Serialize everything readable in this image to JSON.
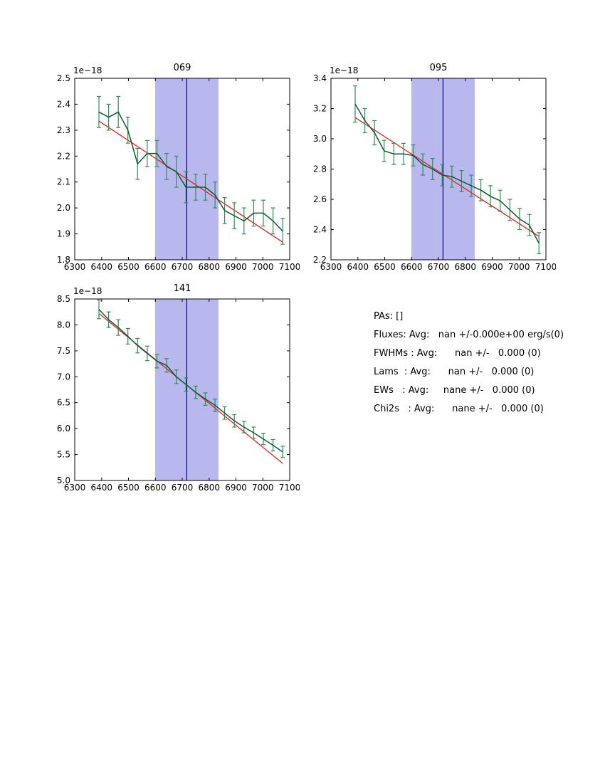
{
  "figure": {
    "bg": "#ffffff",
    "band_color": "#b8b8ef",
    "vline_color": "#00008b",
    "fit_color": "#ee1c1c",
    "line_color": "#0a5c30",
    "err_color": "#2e9150",
    "axis_color": "#000000"
  },
  "chart_data": [
    {
      "type": "line",
      "title": "069",
      "offset": "1e−18",
      "xlim": [
        6300,
        7100
      ],
      "ylim": [
        1.8,
        2.5
      ],
      "xticks": [
        6300,
        6400,
        6500,
        6600,
        6700,
        6800,
        6900,
        7000,
        7100
      ],
      "xtick_labels": [
        "6300",
        "6400",
        "6500",
        "6600",
        "6700",
        "6800",
        "6900",
        "7000",
        "7100"
      ],
      "yticks": [
        1.8,
        1.9,
        2.0,
        2.1,
        2.2,
        2.3,
        2.4,
        2.5
      ],
      "ytick_labels": [
        "1.8",
        "1.9",
        "2.0",
        "2.1",
        "2.2",
        "2.3",
        "2.4",
        "2.5"
      ],
      "band": [
        6599,
        6835
      ],
      "vline": 6717,
      "x": [
        6390,
        6426,
        6462,
        6498,
        6534,
        6570,
        6606,
        6642,
        6678,
        6714,
        6750,
        6786,
        6822,
        6858,
        6894,
        6930,
        6966,
        7002,
        7038,
        7074
      ],
      "y": [
        2.37,
        2.35,
        2.37,
        2.3,
        2.17,
        2.21,
        2.21,
        2.16,
        2.14,
        2.08,
        2.08,
        2.08,
        2.05,
        1.99,
        1.97,
        1.95,
        1.98,
        1.98,
        1.95,
        1.91
      ],
      "yerr": [
        0.06,
        0.05,
        0.06,
        0.05,
        0.06,
        0.05,
        0.05,
        0.05,
        0.06,
        0.06,
        0.05,
        0.05,
        0.05,
        0.05,
        0.05,
        0.05,
        0.05,
        0.05,
        0.05,
        0.05
      ],
      "fit": {
        "x": [
          6390,
          7074
        ],
        "y": [
          2.335,
          1.868
        ]
      },
      "legend": null
    },
    {
      "type": "line",
      "title": "095",
      "offset": "1e−18",
      "xlim": [
        6300,
        7100
      ],
      "ylim": [
        2.2,
        3.4
      ],
      "xticks": [
        6300,
        6400,
        6500,
        6600,
        6700,
        6800,
        6900,
        7000,
        7100
      ],
      "xtick_labels": [
        "6300",
        "6400",
        "6500",
        "6600",
        "6700",
        "6800",
        "6900",
        "7000",
        "7100"
      ],
      "yticks": [
        2.2,
        2.4,
        2.6,
        2.8,
        3.0,
        3.2,
        3.4
      ],
      "ytick_labels": [
        "2.2",
        "2.4",
        "2.6",
        "2.8",
        "3.0",
        "3.2",
        "3.4"
      ],
      "band": [
        6599,
        6835
      ],
      "vline": 6717,
      "x": [
        6390,
        6426,
        6462,
        6498,
        6534,
        6570,
        6606,
        6642,
        6678,
        6714,
        6750,
        6786,
        6822,
        6858,
        6894,
        6930,
        6966,
        7002,
        7038,
        7074
      ],
      "y": [
        3.23,
        3.12,
        3.04,
        2.92,
        2.9,
        2.9,
        2.89,
        2.83,
        2.8,
        2.76,
        2.75,
        2.72,
        2.69,
        2.66,
        2.62,
        2.59,
        2.53,
        2.47,
        2.43,
        2.31
      ],
      "yerr": [
        0.12,
        0.08,
        0.08,
        0.07,
        0.07,
        0.07,
        0.07,
        0.07,
        0.07,
        0.07,
        0.07,
        0.07,
        0.07,
        0.07,
        0.07,
        0.07,
        0.07,
        0.07,
        0.07,
        0.07
      ],
      "fit": {
        "x": [
          6390,
          7074
        ],
        "y": [
          3.14,
          2.355
        ]
      },
      "legend": null
    },
    {
      "type": "line",
      "title": "141",
      "offset": "1e−18",
      "xlim": [
        6300,
        7100
      ],
      "ylim": [
        5.0,
        8.5
      ],
      "xticks": [
        6300,
        6400,
        6500,
        6600,
        6700,
        6800,
        6900,
        7000,
        7100
      ],
      "xtick_labels": [
        "6300",
        "6400",
        "6500",
        "6600",
        "6700",
        "6800",
        "6900",
        "7000",
        "7100"
      ],
      "yticks": [
        5.0,
        5.5,
        6.0,
        6.5,
        7.0,
        7.5,
        8.0,
        8.5
      ],
      "ytick_labels": [
        "5.0",
        "5.5",
        "6.0",
        "6.5",
        "7.0",
        "7.5",
        "8.0",
        "8.5"
      ],
      "band": [
        6599,
        6835
      ],
      "vline": 6717,
      "x": [
        6390,
        6426,
        6462,
        6498,
        6534,
        6570,
        6606,
        6642,
        6678,
        6714,
        6750,
        6786,
        6822,
        6858,
        6894,
        6930,
        6966,
        7002,
        7038,
        7074
      ],
      "y": [
        8.3,
        8.1,
        7.95,
        7.78,
        7.6,
        7.45,
        7.3,
        7.22,
        7.0,
        6.85,
        6.7,
        6.57,
        6.45,
        6.3,
        6.15,
        6.03,
        5.92,
        5.8,
        5.68,
        5.55
      ],
      "yerr": [
        0.18,
        0.15,
        0.15,
        0.15,
        0.14,
        0.14,
        0.13,
        0.13,
        0.13,
        0.13,
        0.12,
        0.12,
        0.12,
        0.12,
        0.12,
        0.11,
        0.11,
        0.11,
        0.11,
        0.11
      ],
      "fit": {
        "x": [
          6390,
          7074
        ],
        "y": [
          8.22,
          5.33
        ]
      },
      "legend": null
    }
  ],
  "stats": {
    "lines": [
      "PAs: []",
      "Fluxes: Avg:   nan +/-0.000e+00 erg/s(0)",
      "FWHMs : Avg:      nan +/-   0.000 (0)",
      "Lams  : Avg:      nan +/-   0.000 (0)",
      "EWs   : Avg:     nane +/-   0.000 (0)",
      "Chi2s   : Avg:      nane +/-   0.000 (0)"
    ]
  }
}
